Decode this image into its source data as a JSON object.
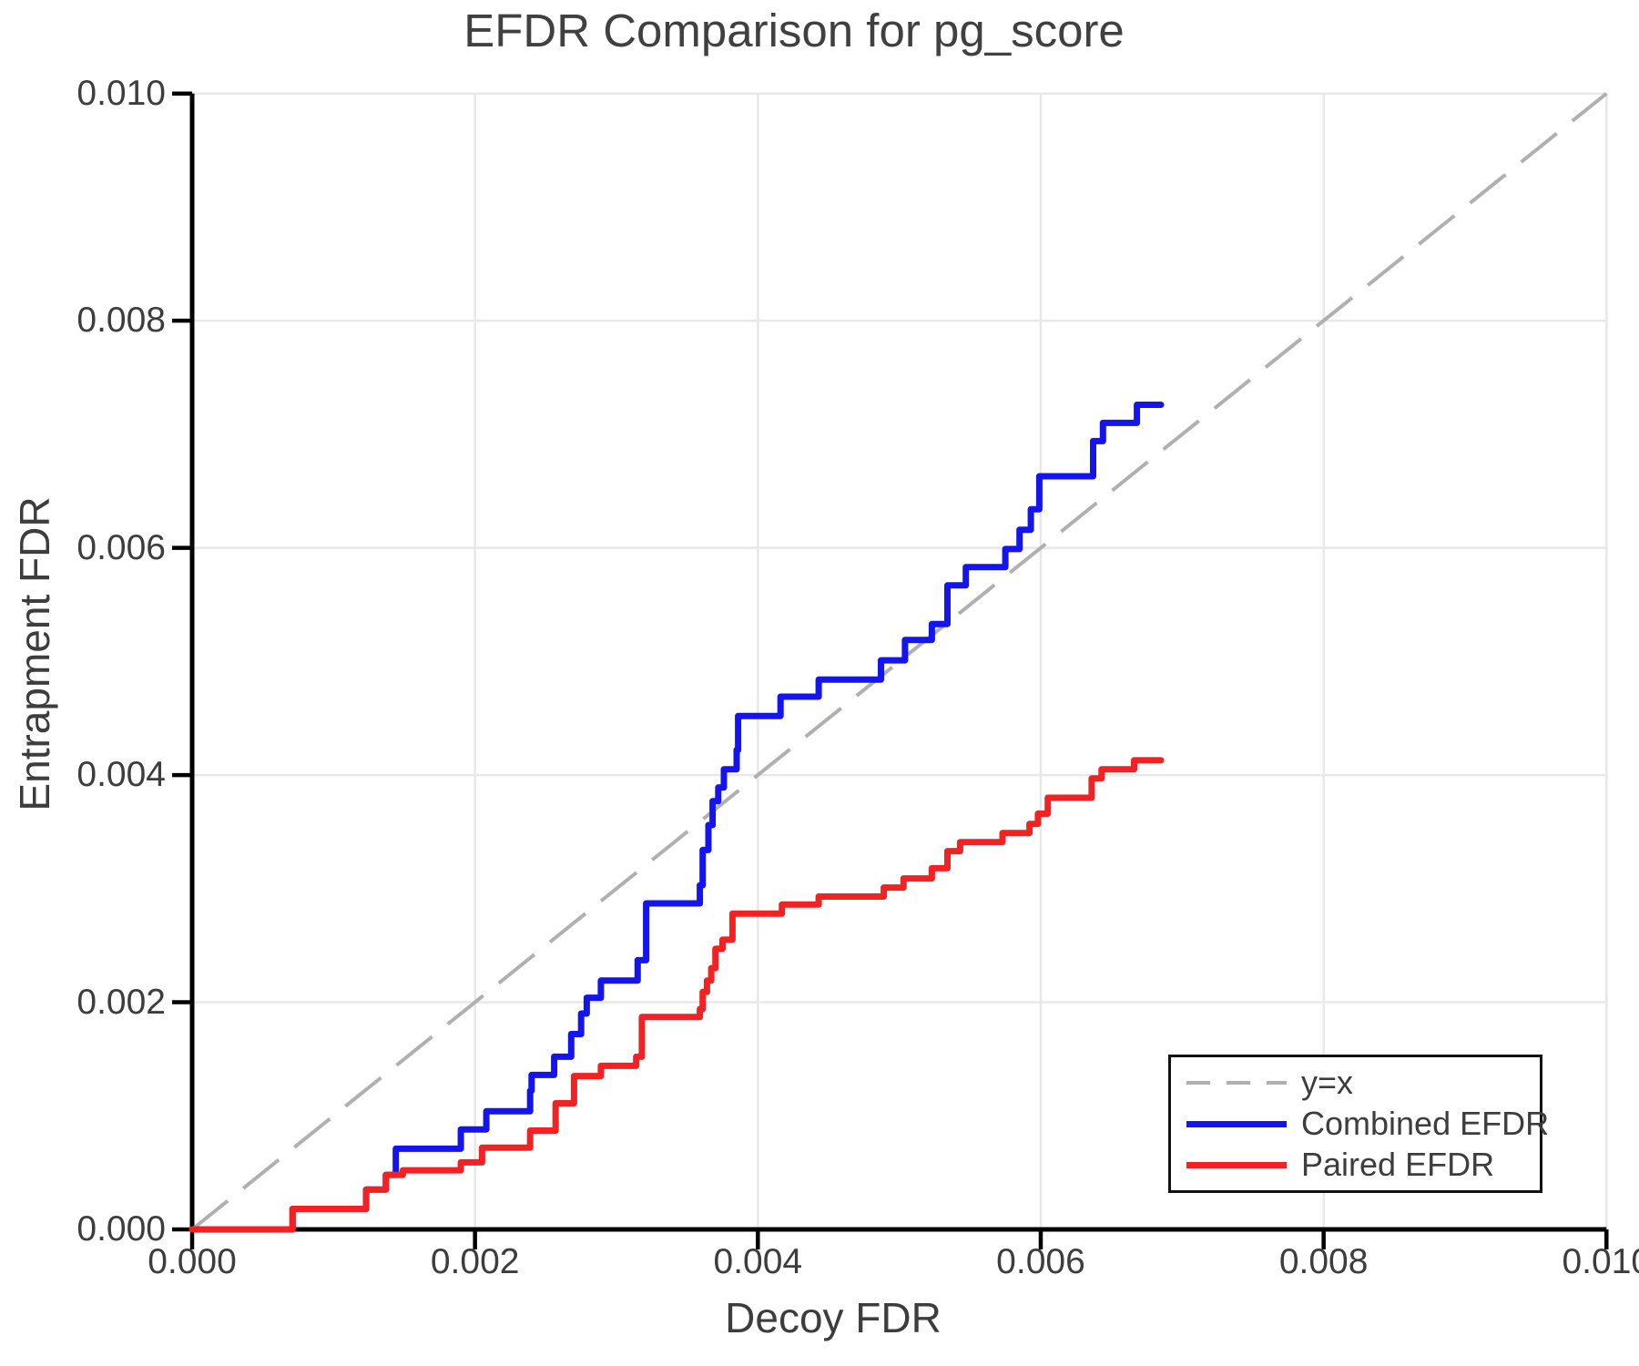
{
  "figure": {
    "title": "EFDR Comparison for pg_score",
    "xlabel": "Decoy FDR",
    "ylabel": "Entrapment FDR"
  },
  "legend": {
    "position": "lower right",
    "items": [
      {
        "label": "y=x",
        "style": "dashed",
        "color": "#b0b0b0"
      },
      {
        "label": "Combined EFDR",
        "style": "solid",
        "color": "#1414f0"
      },
      {
        "label": "Paired EFDR",
        "style": "solid",
        "color": "#f32222"
      }
    ]
  },
  "colors": {
    "grid": "#e8e8e8",
    "spine": "#000000",
    "text": "#3d3d3d",
    "reference": "#b0b0b0",
    "combined": "#1414f0",
    "paired": "#f32222"
  },
  "chart_data": {
    "type": "line",
    "step": "after",
    "title": "EFDR Comparison for pg_score",
    "xlabel": "Decoy FDR",
    "ylabel": "Entrapment FDR",
    "xlim": [
      0.0,
      0.01
    ],
    "ylim": [
      0.0,
      0.01
    ],
    "grid": true,
    "x_ticks": {
      "values": [
        0.0,
        0.002,
        0.004,
        0.006,
        0.008,
        0.01
      ],
      "labels": [
        "0.000",
        "0.002",
        "0.004",
        "0.006",
        "0.008",
        "0.010"
      ]
    },
    "y_ticks": {
      "values": [
        0.0,
        0.002,
        0.004,
        0.006,
        0.008,
        0.01
      ],
      "labels": [
        "0.000",
        "0.002",
        "0.004",
        "0.006",
        "0.008",
        "0.010"
      ]
    },
    "reference_line": {
      "name": "y=x",
      "from": [
        0.0,
        0.0
      ],
      "to": [
        0.01,
        0.01
      ],
      "style": "dashed",
      "color": "#b0b0b0"
    },
    "series": [
      {
        "name": "Combined EFDR",
        "color": "#1414f0",
        "points": [
          [
            0.0,
            0.0
          ],
          [
            0.00071,
            0.00018
          ],
          [
            0.00123,
            0.00035
          ],
          [
            0.00137,
            0.00048
          ],
          [
            0.00144,
            0.00071
          ],
          [
            0.0019,
            0.00088
          ],
          [
            0.00208,
            0.00104
          ],
          [
            0.00239,
            0.00122
          ],
          [
            0.0024,
            0.00136
          ],
          [
            0.00256,
            0.00152
          ],
          [
            0.00268,
            0.00172
          ],
          [
            0.00275,
            0.0019
          ],
          [
            0.00279,
            0.00204
          ],
          [
            0.00289,
            0.00219
          ],
          [
            0.00315,
            0.00237
          ],
          [
            0.00321,
            0.00287
          ],
          [
            0.00359,
            0.00303
          ],
          [
            0.00361,
            0.00334
          ],
          [
            0.00365,
            0.00356
          ],
          [
            0.00368,
            0.00377
          ],
          [
            0.00372,
            0.00389
          ],
          [
            0.00376,
            0.00405
          ],
          [
            0.00385,
            0.00422
          ],
          [
            0.00386,
            0.00452
          ],
          [
            0.00416,
            0.00469
          ],
          [
            0.00443,
            0.00484
          ],
          [
            0.00487,
            0.00501
          ],
          [
            0.00504,
            0.00519
          ],
          [
            0.00523,
            0.00533
          ],
          [
            0.00534,
            0.00567
          ],
          [
            0.00547,
            0.00583
          ],
          [
            0.00575,
            0.00599
          ],
          [
            0.00585,
            0.00616
          ],
          [
            0.00593,
            0.00634
          ],
          [
            0.00599,
            0.00663
          ],
          [
            0.00637,
            0.00694
          ],
          [
            0.00644,
            0.0071
          ],
          [
            0.00668,
            0.00726
          ],
          [
            0.00685,
            0.00726
          ]
        ]
      },
      {
        "name": "Paired EFDR",
        "color": "#f32222",
        "points": [
          [
            0.0,
            0.0
          ],
          [
            0.00071,
            0.00018
          ],
          [
            0.00123,
            0.00035
          ],
          [
            0.00137,
            0.00048
          ],
          [
            0.00149,
            0.00052
          ],
          [
            0.0019,
            0.00059
          ],
          [
            0.00205,
            0.00072
          ],
          [
            0.00239,
            0.00087
          ],
          [
            0.00257,
            0.00111
          ],
          [
            0.0027,
            0.00135
          ],
          [
            0.00289,
            0.00144
          ],
          [
            0.00314,
            0.00152
          ],
          [
            0.00318,
            0.00187
          ],
          [
            0.00359,
            0.00194
          ],
          [
            0.00361,
            0.00209
          ],
          [
            0.00364,
            0.00219
          ],
          [
            0.00367,
            0.0023
          ],
          [
            0.0037,
            0.00247
          ],
          [
            0.00375,
            0.00255
          ],
          [
            0.00382,
            0.00278
          ],
          [
            0.00417,
            0.00286
          ],
          [
            0.00443,
            0.00293
          ],
          [
            0.00489,
            0.00301
          ],
          [
            0.00503,
            0.00309
          ],
          [
            0.00523,
            0.00318
          ],
          [
            0.00534,
            0.00333
          ],
          [
            0.00543,
            0.00341
          ],
          [
            0.00573,
            0.00349
          ],
          [
            0.00592,
            0.00357
          ],
          [
            0.00598,
            0.00366
          ],
          [
            0.00605,
            0.0038
          ],
          [
            0.00636,
            0.00397
          ],
          [
            0.00643,
            0.00405
          ],
          [
            0.00666,
            0.00413
          ],
          [
            0.00685,
            0.00413
          ]
        ]
      }
    ]
  }
}
